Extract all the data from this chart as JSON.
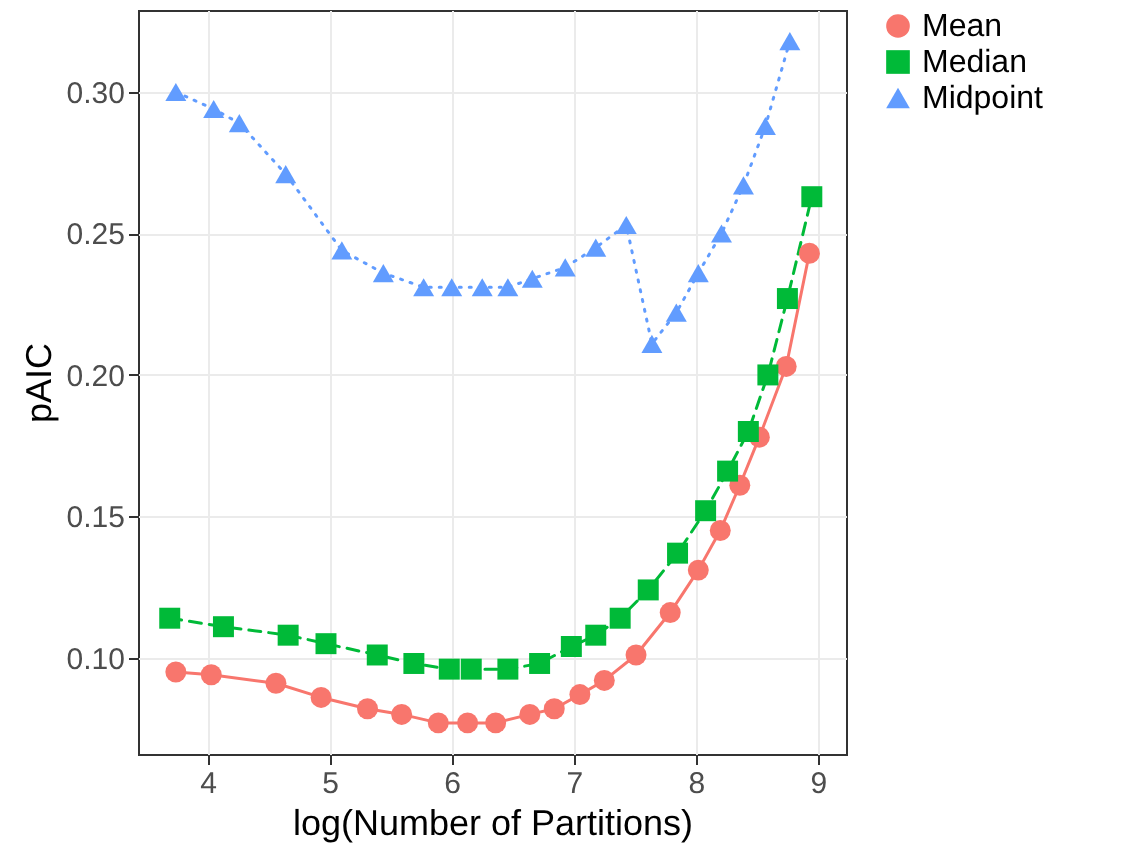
{
  "chart_data": {
    "type": "line",
    "xlabel": "log(Number of Partitions)",
    "ylabel": "pAIC",
    "xlim": [
      3.43,
      9.23
    ],
    "xticks": [
      4,
      5,
      6,
      7,
      8,
      9
    ],
    "ylim": [
      0.066,
      0.329
    ],
    "yticks": [
      {
        "value": 0.1,
        "label": "0.10"
      },
      0.15,
      {
        "value": 0.2,
        "label": "0.20"
      },
      0.25,
      {
        "value": 0.3,
        "label": "0.30"
      }
    ],
    "grid": true,
    "legend": "right",
    "series": [
      {
        "name": "Mean",
        "color": "#f8766d",
        "marker": "circle",
        "line_style": "solid",
        "x": [
          3.74,
          4.03,
          4.56,
          4.93,
          5.31,
          5.59,
          5.89,
          6.13,
          6.36,
          6.64,
          6.84,
          7.05,
          7.25,
          7.51,
          7.79,
          8.02,
          8.2,
          8.36,
          8.52,
          8.74,
          8.93
        ],
        "values": [
          0.095,
          0.094,
          0.091,
          0.086,
          0.082,
          0.08,
          0.077,
          0.077,
          0.077,
          0.08,
          0.082,
          0.087,
          0.092,
          0.101,
          0.116,
          0.131,
          0.145,
          0.161,
          0.178,
          0.203,
          0.243
        ]
      },
      {
        "name": "Median",
        "color": "#00ba38",
        "marker": "square",
        "line_style": "dashed",
        "x": [
          3.69,
          4.13,
          4.66,
          4.97,
          5.39,
          5.69,
          5.98,
          6.16,
          6.46,
          6.72,
          6.98,
          7.18,
          7.38,
          7.61,
          7.85,
          8.08,
          8.26,
          8.43,
          8.59,
          8.75,
          8.95
        ],
        "values": [
          0.114,
          0.111,
          0.108,
          0.105,
          0.101,
          0.098,
          0.096,
          0.096,
          0.096,
          0.098,
          0.104,
          0.108,
          0.114,
          0.124,
          0.137,
          0.152,
          0.166,
          0.18,
          0.2,
          0.227,
          0.263
        ]
      },
      {
        "name": "Midpoint",
        "color": "#619cff",
        "marker": "triangle",
        "line_style": "dotted",
        "x": [
          3.74,
          4.05,
          4.26,
          4.64,
          5.1,
          5.44,
          5.77,
          6.0,
          6.25,
          6.46,
          6.66,
          6.93,
          7.18,
          7.43,
          7.64,
          7.84,
          8.02,
          8.21,
          8.39,
          8.57,
          8.77
        ],
        "values": [
          0.3,
          0.294,
          0.289,
          0.271,
          0.244,
          0.236,
          0.231,
          0.231,
          0.231,
          0.231,
          0.234,
          0.238,
          0.245,
          0.253,
          0.211,
          0.222,
          0.236,
          0.25,
          0.267,
          0.288,
          0.318
        ]
      }
    ]
  }
}
